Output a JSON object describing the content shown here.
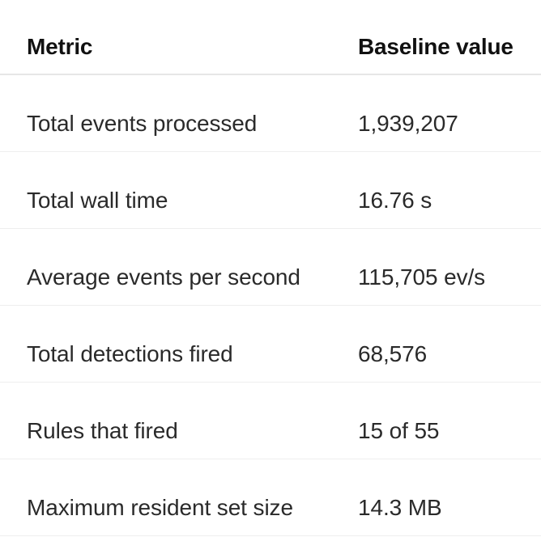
{
  "table": {
    "headers": {
      "metric": "Metric",
      "value": "Baseline value"
    },
    "rows": [
      {
        "metric": "Total events processed",
        "value": "1,939,207"
      },
      {
        "metric": "Total wall time",
        "value": "16.76 s"
      },
      {
        "metric": "Average events per second",
        "value": "115,705 ev/s"
      },
      {
        "metric": "Total detections fired",
        "value": "68,576"
      },
      {
        "metric": "Rules that fired",
        "value": "15 of 55"
      },
      {
        "metric": "Maximum resident set size",
        "value": "14.3 MB"
      }
    ]
  }
}
